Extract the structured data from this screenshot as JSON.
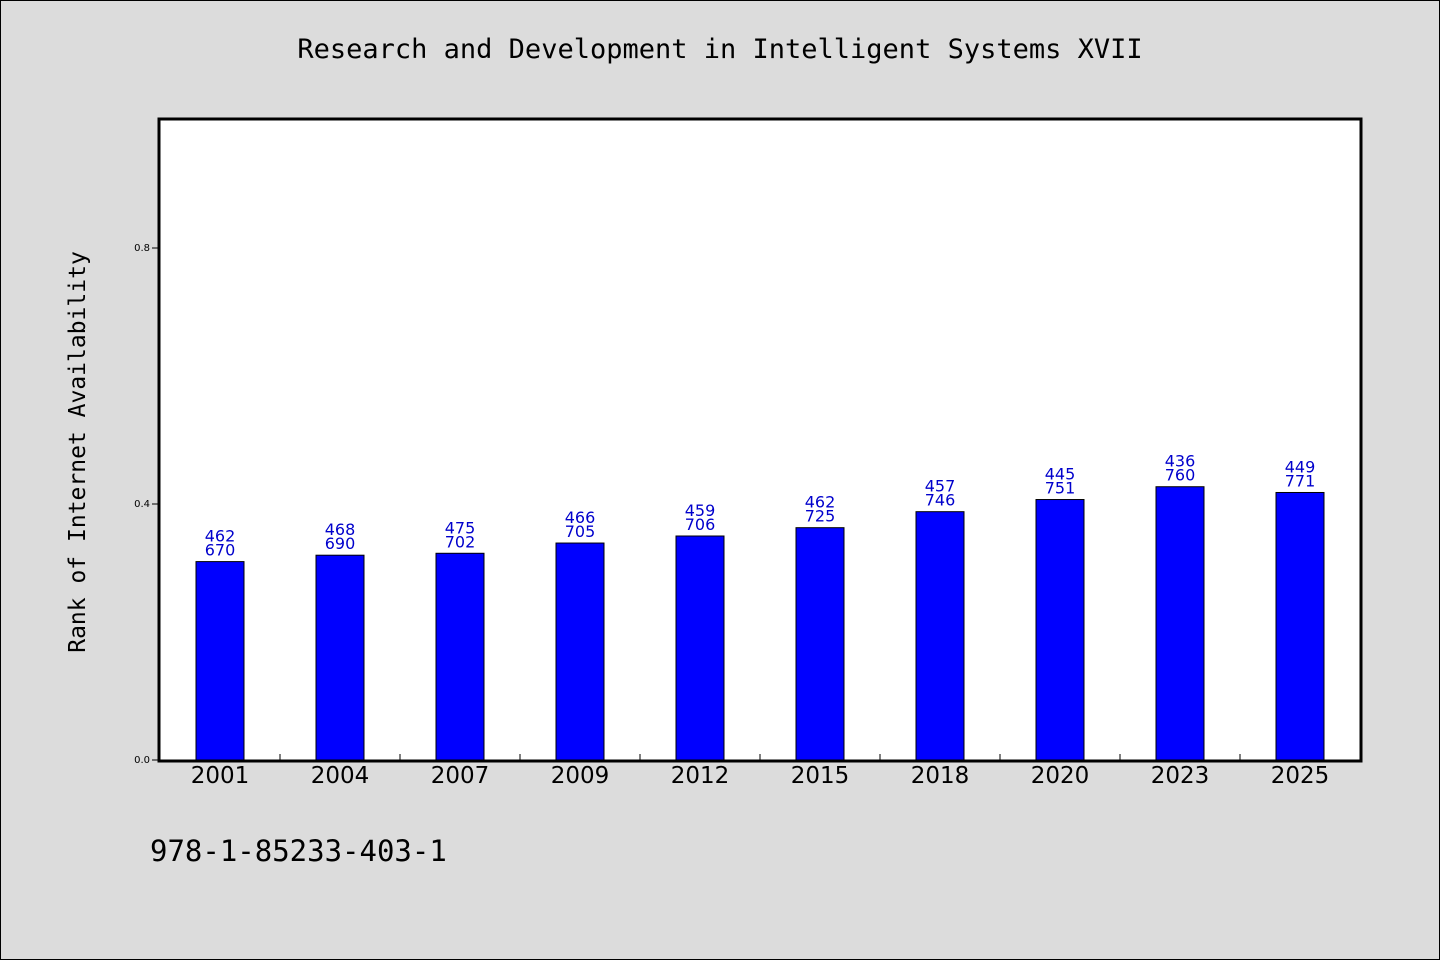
{
  "chart_data": {
    "type": "bar",
    "title": "Research and Development in Intelligent Systems XVII",
    "xlabel": "",
    "ylabel": "Rank of Internet Availability",
    "categories": [
      "2001",
      "2004",
      "2007",
      "2009",
      "2012",
      "2015",
      "2018",
      "2020",
      "2023",
      "2025"
    ],
    "values": [
      0.31,
      0.32,
      0.323,
      0.339,
      0.35,
      0.363,
      0.388,
      0.407,
      0.427,
      0.418
    ],
    "bar_labels": [
      [
        "462",
        "670"
      ],
      [
        "468",
        "690"
      ],
      [
        "475",
        "702"
      ],
      [
        "466",
        "705"
      ],
      [
        "459",
        "706"
      ],
      [
        "462",
        "725"
      ],
      [
        "457",
        "746"
      ],
      [
        "445",
        "751"
      ],
      [
        "436",
        "760"
      ],
      [
        "449",
        "771"
      ]
    ],
    "yticks": [
      0.0,
      0.4,
      0.8
    ],
    "ytick_labels": [
      "0.0",
      "0.4",
      "0.8"
    ],
    "ylim": [
      0,
      1.0
    ],
    "grid": false,
    "bar_color": "#0000ff",
    "label_color": "#0000cc",
    "background_color": "#dcdcdc",
    "plot_background_color": "#ffffff"
  },
  "footer": {
    "code": "978-1-85233-403-1"
  }
}
